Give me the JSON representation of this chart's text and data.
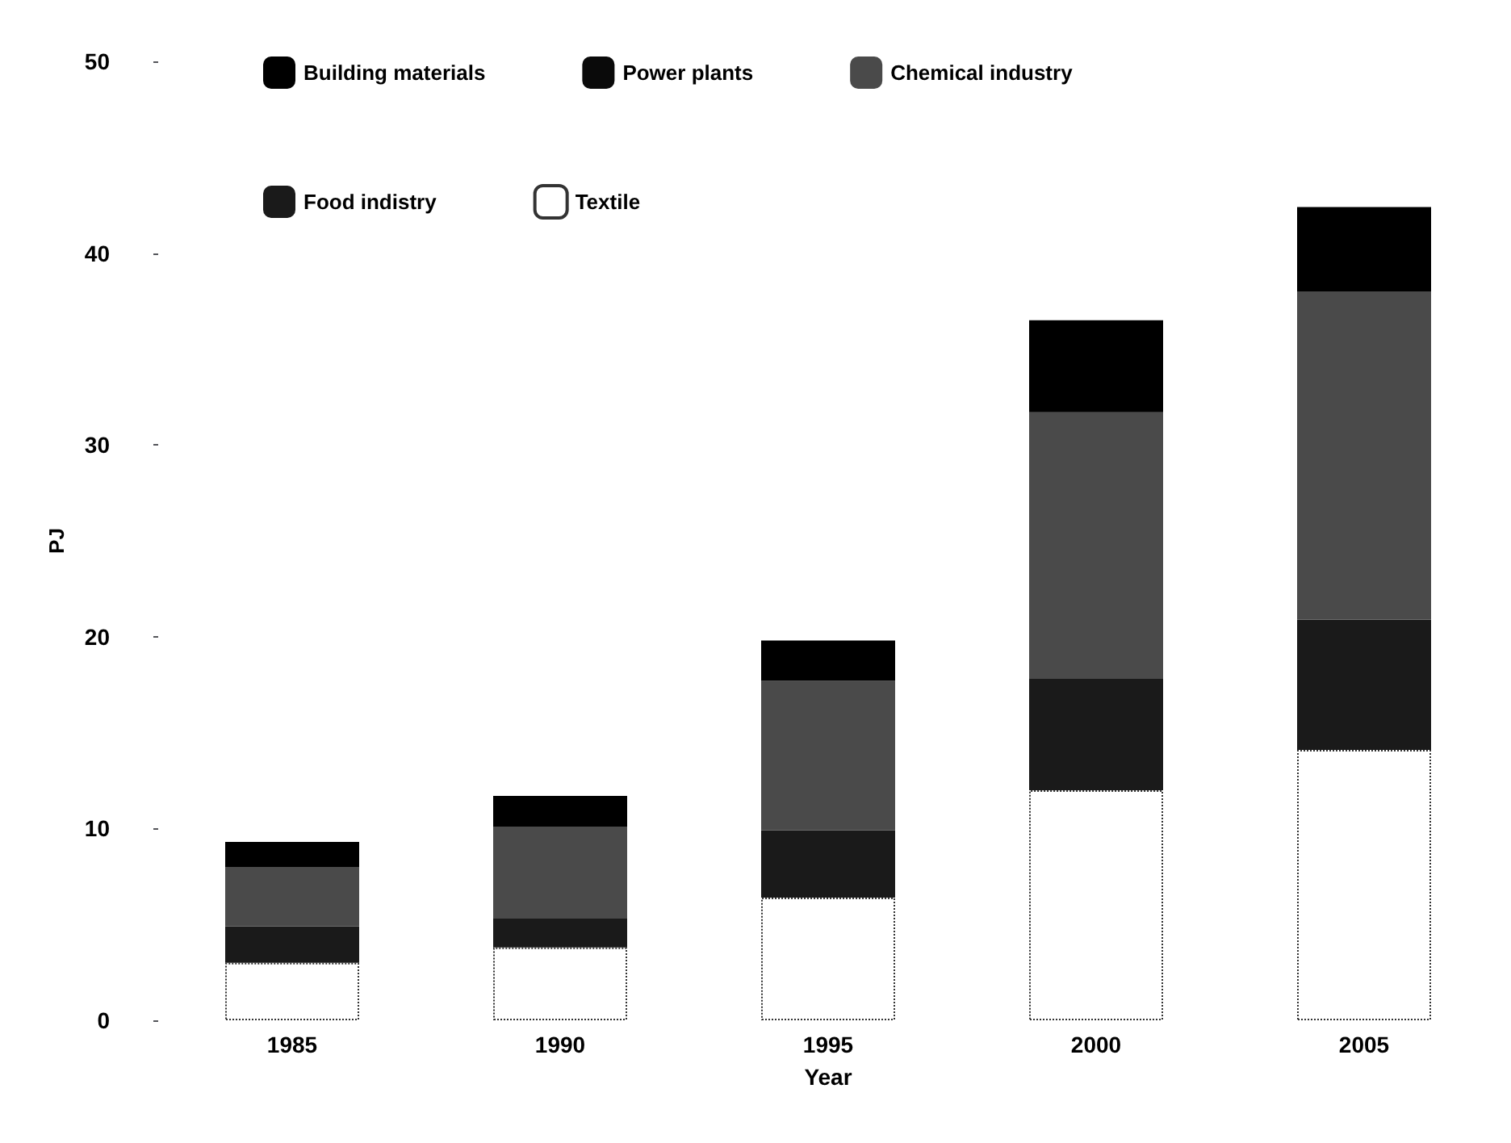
{
  "chart_data": {
    "type": "bar",
    "stacked": true,
    "xlabel": "Year",
    "ylabel": "PJ",
    "categories": [
      "1985",
      "1990",
      "1995",
      "2000",
      "2005"
    ],
    "series": [
      {
        "name": "Textile",
        "color": "#ffffff",
        "values": [
          3.0,
          3.8,
          6.4,
          12.0,
          14.1
        ]
      },
      {
        "name": "Food indistry",
        "color": "#1a1a1a",
        "values": [
          1.9,
          1.5,
          3.5,
          5.8,
          6.8
        ]
      },
      {
        "name": "Chemical industry",
        "color": "#4a4a4a",
        "values": [
          3.1,
          4.8,
          7.8,
          13.9,
          17.1
        ]
      },
      {
        "name": "Power plants",
        "color": "#0a0a0a",
        "values": [
          0,
          0,
          0,
          0,
          0
        ]
      },
      {
        "name": "Building materials",
        "color": "#000000",
        "values": [
          1.3,
          1.6,
          2.1,
          4.8,
          4.4
        ]
      }
    ],
    "ylim": [
      0,
      50
    ],
    "yticks": [
      0,
      10,
      20,
      30,
      40,
      50
    ],
    "grid": false,
    "legend": "top left"
  }
}
